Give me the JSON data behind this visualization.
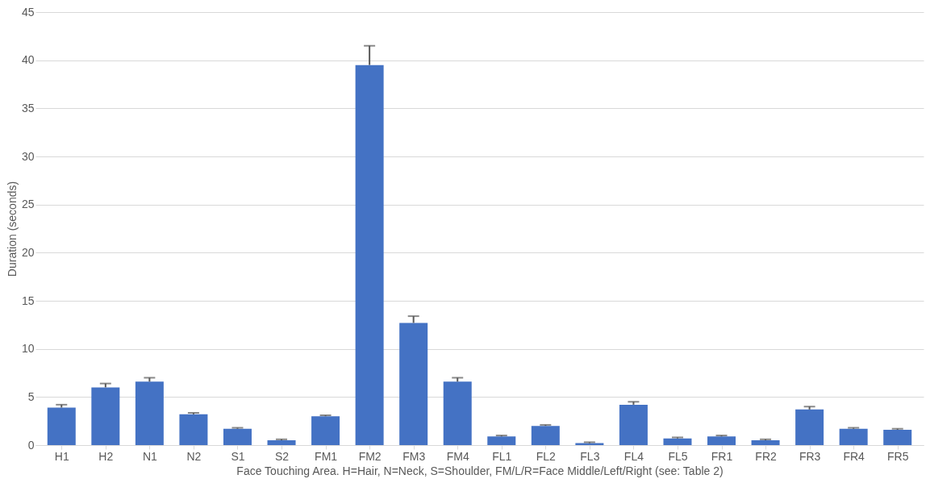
{
  "chart_data": {
    "type": "bar",
    "xlabel": "Face Touching Area. H=Hair, N=Neck, S=Shoulder, FM/L/R=Face Middle/Left/Right (see: Table 2)",
    "ylabel": "Duration (seconds)",
    "categories": [
      "H1",
      "H2",
      "N1",
      "N2",
      "S1",
      "S2",
      "FM1",
      "FM2",
      "FM3",
      "FM4",
      "FL1",
      "FL2",
      "FL3",
      "FL4",
      "FL5",
      "FR1",
      "FR2",
      "FR3",
      "FR4",
      "FR5"
    ],
    "values": [
      3.9,
      6.0,
      6.6,
      3.2,
      1.7,
      0.5,
      3.0,
      39.5,
      12.7,
      6.6,
      0.9,
      2.0,
      0.2,
      4.2,
      0.7,
      0.9,
      0.5,
      3.7,
      1.7,
      1.6
    ],
    "errors": [
      [
        3.9,
        4.2
      ],
      [
        6.0,
        6.4
      ],
      [
        6.6,
        7.0
      ],
      [
        3.2,
        3.35
      ],
      [
        1.7,
        1.8
      ],
      [
        0.5,
        0.6
      ],
      [
        3.0,
        3.1
      ],
      [
        39.5,
        41.5
      ],
      [
        12.7,
        13.4
      ],
      [
        6.6,
        7.0
      ],
      [
        0.9,
        1.0
      ],
      [
        2.0,
        2.1
      ],
      [
        0.2,
        0.3
      ],
      [
        4.2,
        4.5
      ],
      [
        0.7,
        0.8
      ],
      [
        0.9,
        1.0
      ],
      [
        0.5,
        0.6
      ],
      [
        3.7,
        4.0
      ],
      [
        1.7,
        1.8
      ],
      [
        1.6,
        1.7
      ]
    ],
    "color": "#4472c4",
    "ylim": [
      0,
      45
    ],
    "yticks": [
      0,
      5,
      10,
      15,
      20,
      25,
      30,
      35,
      40,
      45
    ],
    "grid": "y"
  }
}
